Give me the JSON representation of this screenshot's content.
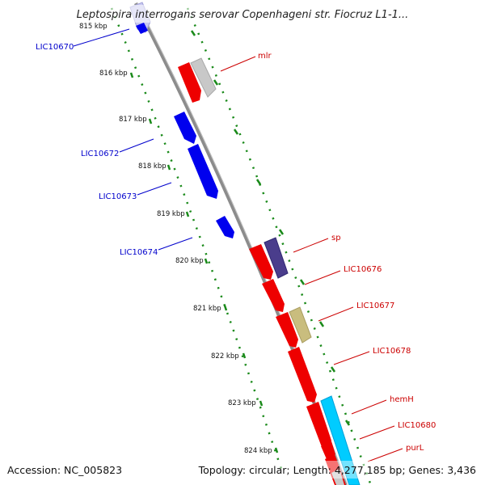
{
  "header": {
    "title": "Leptospira interrogans serovar Copenhageni str. Fiocruz L1-1..."
  },
  "footer": {
    "accession": "Accession: NC_005823",
    "summary": "Topology: circular; Length: 4,277,185 bp; Genes: 3,436"
  },
  "colors": {
    "backbone": "#8c8c8c",
    "tick_green": "#1a8a1a",
    "label_blue": "#0000cc",
    "label_red": "#cc0000"
  },
  "ticks": [
    {
      "label": "815 kbp"
    },
    {
      "label": "816 kbp"
    },
    {
      "label": "817 kbp"
    },
    {
      "label": "818 kbp"
    },
    {
      "label": "819 kbp"
    },
    {
      "label": "820 kbp"
    },
    {
      "label": "821 kbp"
    },
    {
      "label": "822 kbp"
    },
    {
      "label": "823 kbp"
    },
    {
      "label": "824 kbp"
    }
  ],
  "genes_left": [
    {
      "name": "LIC10670",
      "color": "#c8c8f0"
    },
    {
      "name": "LIC10672",
      "color": "#0000ee"
    },
    {
      "name": "LIC10673",
      "color": "#0000ee"
    },
    {
      "name": "LIC10674",
      "color": "#0000ee"
    }
  ],
  "genes_right": [
    {
      "name": "mlr",
      "color": "#ee0000"
    },
    {
      "name": "sp",
      "color": "#ee0000"
    },
    {
      "name": "LIC10676",
      "color": "#ee0000"
    },
    {
      "name": "LIC10677",
      "color": "#ee0000"
    },
    {
      "name": "LIC10678",
      "color": "#ee0000"
    },
    {
      "name": "hemH",
      "color": "#ee0000"
    },
    {
      "name": "LIC10680",
      "color": "#ee0000"
    },
    {
      "name": "purL",
      "color": "#ee0000"
    }
  ]
}
